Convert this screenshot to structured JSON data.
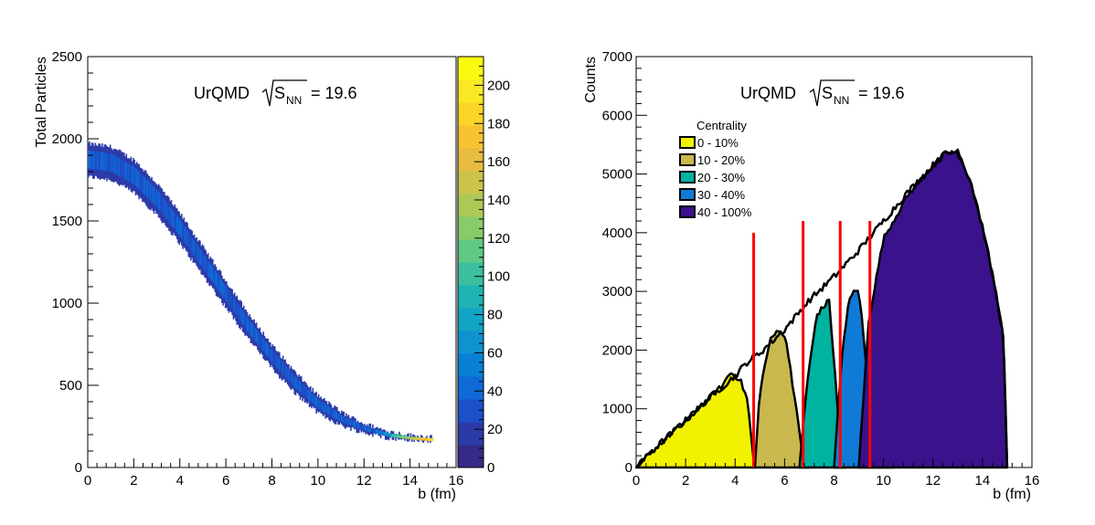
{
  "chart_data": [
    {
      "type": "heatmap",
      "title": "UrQMD",
      "title_sqrt_symbol": "S",
      "title_subscript": "NN",
      "title_value": "= 19.6",
      "xlabel": "b (fm)",
      "ylabel": "Total Particles",
      "xlim": [
        0,
        16
      ],
      "ylim": [
        0,
        2500
      ],
      "x_ticks": [
        "0",
        "2",
        "4",
        "6",
        "8",
        "10",
        "12",
        "14",
        "16"
      ],
      "y_ticks": [
        "0",
        "500",
        "1000",
        "1500",
        "2000",
        "2500"
      ],
      "band_center": {
        "b": [
          0,
          1,
          2,
          3,
          4,
          5,
          6,
          7,
          8,
          9,
          10,
          11,
          12,
          13,
          14,
          15
        ],
        "particles": [
          1880,
          1860,
          1780,
          1640,
          1460,
          1260,
          1060,
          860,
          680,
          520,
          390,
          300,
          240,
          200,
          180,
          170
        ]
      },
      "band_width_top": [
        90,
        90,
        90,
        85,
        80,
        75,
        70,
        65,
        60,
        55,
        45,
        35,
        25,
        20,
        15,
        15
      ],
      "band_width_bottom": [
        110,
        110,
        110,
        105,
        100,
        95,
        90,
        85,
        80,
        70,
        60,
        45,
        30,
        20,
        15,
        15
      ],
      "colorbar": {
        "range": [
          0,
          215
        ],
        "ticks": [
          "0",
          "20",
          "40",
          "60",
          "80",
          "100",
          "120",
          "140",
          "160",
          "180",
          "200"
        ],
        "palette": [
          "#352a87",
          "#2c3aa8",
          "#1d4fc8",
          "#0f6ad8",
          "#0a7fd6",
          "#0f93cf",
          "#12a4c4",
          "#1fb3b3",
          "#3bbf9e",
          "#5fc984",
          "#86cc6a",
          "#acc957",
          "#cbc34a",
          "#e6bd3e",
          "#f8c233",
          "#fbd52a",
          "#f9e824",
          "#f9fb0e"
        ]
      }
    },
    {
      "type": "area",
      "title": "UrQMD",
      "title_sqrt_symbol": "S",
      "title_subscript": "NN",
      "title_value": "= 19.6",
      "xlabel": "b (fm)",
      "ylabel": "Counts",
      "xlim": [
        0,
        16
      ],
      "ylim": [
        0,
        7000
      ],
      "x_ticks": [
        "0",
        "2",
        "4",
        "6",
        "8",
        "10",
        "12",
        "14",
        "16"
      ],
      "y_ticks": [
        "0",
        "1000",
        "2000",
        "3000",
        "4000",
        "5000",
        "6000",
        "7000"
      ],
      "legend_title": "Centrality",
      "legend_placement": "top-left",
      "total": {
        "x": [
          0,
          1,
          2,
          3,
          4,
          4.5,
          5,
          6,
          7,
          8,
          9,
          10,
          11,
          12,
          12.5,
          13,
          13.5,
          14,
          14.5,
          14.85,
          15
        ],
        "y": [
          0,
          420,
          800,
          1200,
          1560,
          1800,
          1950,
          2350,
          2850,
          3250,
          3700,
          4200,
          4700,
          5150,
          5350,
          5380,
          4900,
          4100,
          3100,
          2200,
          0
        ]
      },
      "series": [
        {
          "name": "0 - 10%",
          "color": "#f2f200",
          "x": [
            0,
            1,
            2,
            3,
            3.5,
            3.8,
            4.2,
            4.5,
            4.7,
            4.8
          ],
          "y": [
            0,
            420,
            800,
            1200,
            1400,
            1620,
            1500,
            1150,
            300,
            0
          ]
        },
        {
          "name": "10 - 20%",
          "color": "#c9b84e",
          "x": [
            4.8,
            5.0,
            5.4,
            5.8,
            6.1,
            6.4,
            6.7,
            7.0
          ],
          "y": [
            0,
            1300,
            2150,
            2380,
            2100,
            1200,
            300,
            0
          ]
        },
        {
          "name": "20 - 30%",
          "color": "#00b2a0",
          "x": [
            6.6,
            6.9,
            7.3,
            7.8,
            8.0,
            8.2,
            8.5
          ],
          "y": [
            0,
            1400,
            2600,
            2850,
            1800,
            700,
            0
          ]
        },
        {
          "name": "30 - 40%",
          "color": "#0f7bd6",
          "x": [
            8.0,
            8.3,
            8.6,
            9.0,
            9.2,
            9.5,
            9.9,
            10.4
          ],
          "y": [
            0,
            1800,
            2900,
            3050,
            2200,
            1000,
            300,
            0
          ]
        },
        {
          "name": "40 - 100%",
          "color": "#3a128c",
          "x": [
            9.0,
            9.4,
            10.0,
            11.0,
            12.0,
            12.5,
            13.0,
            13.5,
            14.0,
            14.5,
            14.85,
            15.0
          ],
          "y": [
            0,
            2500,
            3900,
            4650,
            5150,
            5350,
            5380,
            4900,
            4100,
            3100,
            2200,
            0
          ]
        }
      ],
      "cut_lines": {
        "color": "#ff0000",
        "x": [
          4.75,
          6.75,
          8.25,
          9.45
        ],
        "y_top": [
          4000,
          4200,
          4200,
          4200
        ]
      }
    }
  ]
}
